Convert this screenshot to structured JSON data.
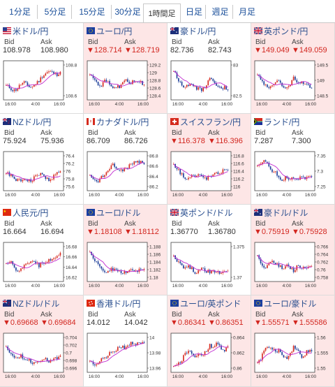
{
  "tabs": [
    {
      "label": "1分足",
      "active": false
    },
    {
      "label": "5分足",
      "active": false
    },
    {
      "label": "15分足",
      "active": false
    },
    {
      "label": "30分足",
      "active": false
    },
    {
      "label": "1時間足",
      "active": true
    },
    {
      "label": "日足",
      "active": false
    },
    {
      "label": "週足",
      "active": false
    },
    {
      "label": "月足",
      "active": false
    }
  ],
  "panels": [
    {
      "title": "米ドル/円",
      "flag": "us-flag-icon",
      "bid_label": "Bid",
      "ask_label": "Ask",
      "bid": "108.978",
      "ask": "108.980",
      "down": false,
      "bg": "white",
      "yticks": [
        "108.8",
        "108.6"
      ],
      "xticks": [
        "16:00",
        "4:00",
        "16:00"
      ]
    },
    {
      "title": "ユーロ/円",
      "flag": "eu-flag-icon",
      "bid_label": "Bid",
      "ask_label": "Ask",
      "bid": "▼128.714",
      "ask": "▼128.719",
      "down": true,
      "bg": "pink",
      "yticks": [
        "129.2",
        "129",
        "128.8",
        "128.6",
        "128.4"
      ],
      "xticks": [
        "16:00",
        "4:00",
        "16:00"
      ]
    },
    {
      "title": "豪ドル/円",
      "flag": "au-flag-icon",
      "bid_label": "Bid",
      "ask_label": "Ask",
      "bid": "82.736",
      "ask": "82.743",
      "down": false,
      "bg": "white",
      "yticks": [
        "83",
        "82.5"
      ],
      "xticks": [
        "16:00",
        "4:00",
        "16:00"
      ]
    },
    {
      "title": "英ポンド/円",
      "flag": "uk-flag-icon",
      "bid_label": "Bid",
      "ask_label": "Ask",
      "bid": "▼149.049",
      "ask": "▼149.059",
      "down": true,
      "bg": "pink",
      "yticks": [
        "149.5",
        "149",
        "148.5"
      ],
      "xticks": [
        "16:00",
        "4:00",
        "16:00"
      ]
    },
    {
      "title": "NZドル/円",
      "flag": "nz-flag-icon",
      "bid_label": "Bid",
      "ask_label": "Ask",
      "bid": "75.924",
      "ask": "75.936",
      "down": false,
      "bg": "white",
      "yticks": [
        "76.4",
        "76.2",
        "76",
        "75.8",
        "75.6"
      ],
      "xticks": [
        "16:00",
        "4:00",
        "16:00"
      ]
    },
    {
      "title": "カナダドル/円",
      "flag": "ca-flag-icon",
      "bid_label": "Bid",
      "ask_label": "Ask",
      "bid": "86.709",
      "ask": "86.726",
      "down": false,
      "bg": "white",
      "yticks": [
        "86.8",
        "86.6",
        "86.4",
        "86.2"
      ],
      "xticks": [
        "16:00",
        "4:00",
        "16:00"
      ]
    },
    {
      "title": "スイスフラン/円",
      "flag": "ch-flag-icon",
      "bid_label": "Bid",
      "ask_label": "Ask",
      "bid": "▼116.378",
      "ask": "▼116.396",
      "down": true,
      "bg": "pink",
      "yticks": [
        "116.8",
        "116.6",
        "116.4",
        "116.2",
        "116"
      ],
      "xticks": [
        "16:00",
        "4:00",
        "16:00"
      ]
    },
    {
      "title": "ランド/円",
      "flag": "za-flag-icon",
      "bid_label": "Bid",
      "ask_label": "Ask",
      "bid": "7.287",
      "ask": "7.300",
      "down": false,
      "bg": "white",
      "yticks": [
        "7.35",
        "7.3",
        "7.25"
      ],
      "xticks": [
        "16:00",
        "4:00",
        "16:00"
      ]
    },
    {
      "title": "人民元/円",
      "flag": "cn-flag-icon",
      "bid_label": "Bid",
      "ask_label": "Ask",
      "bid": "16.664",
      "ask": "16.694",
      "down": false,
      "bg": "white",
      "yticks": [
        "16.68",
        "16.66",
        "16.64",
        "16.62"
      ],
      "xticks": [
        "16:00",
        "4:00",
        "16:00"
      ]
    },
    {
      "title": "ユーロ/ドル",
      "flag": "eu-flag-icon",
      "bid_label": "Bid",
      "ask_label": "Ask",
      "bid": "▼1.18108",
      "ask": "▼1.18112",
      "down": true,
      "bg": "pink",
      "yticks": [
        "1.188",
        "1.186",
        "1.184",
        "1.182",
        "1.18"
      ],
      "xticks": [
        "16:00",
        "4:00",
        "16:00"
      ]
    },
    {
      "title": "英ポンド/ドル",
      "flag": "uk-flag-icon",
      "bid_label": "Bid",
      "ask_label": "Ask",
      "bid": "1.36770",
      "ask": "1.36780",
      "down": false,
      "bg": "white",
      "yticks": [
        "1.375",
        "1.37"
      ],
      "xticks": [
        "16:00",
        "4:00",
        "16:00"
      ]
    },
    {
      "title": "豪ドル/ドル",
      "flag": "au-flag-icon",
      "bid_label": "Bid",
      "ask_label": "Ask",
      "bid": "▼0.75919",
      "ask": "▼0.75928",
      "down": true,
      "bg": "pink",
      "yticks": [
        "0.766",
        "0.764",
        "0.762",
        "0.76",
        "0.758"
      ],
      "xticks": [
        "16:00",
        "4:00",
        "16:00"
      ]
    },
    {
      "title": "NZドル/ドル",
      "flag": "nz-flag-icon",
      "bid_label": "Bid",
      "ask_label": "Ask",
      "bid": "▼0.69668",
      "ask": "▼0.69684",
      "down": true,
      "bg": "pink",
      "yticks": [
        "0.704",
        "0.702",
        "0.7",
        "0.698",
        "0.696"
      ],
      "xticks": [
        "16:00",
        "4:00",
        "16:00"
      ]
    },
    {
      "title": "香港ドル/円",
      "flag": "hk-flag-icon",
      "bid_label": "Bid",
      "ask_label": "Ask",
      "bid": "14.012",
      "ask": "14.042",
      "down": false,
      "bg": "white",
      "yticks": [
        "14",
        "13.98",
        "13.96"
      ],
      "xticks": [
        "16:00",
        "4:00",
        "16:00"
      ]
    },
    {
      "title": "ユーロ/英ポンド",
      "flag": "eu-flag-icon",
      "bid_label": "Bid",
      "ask_label": "Ask",
      "bid": "▼0.86341",
      "ask": "▼0.86351",
      "down": true,
      "bg": "pink",
      "yticks": [
        "0.864",
        "0.862",
        "0.86"
      ],
      "xticks": [
        "16:00",
        "4:00",
        "16:00"
      ]
    },
    {
      "title": "ユーロ/豪ドル",
      "flag": "eu-flag-icon",
      "bid_label": "Bid",
      "ask_label": "Ask",
      "bid": "▼1.55571",
      "ask": "▼1.55586",
      "down": true,
      "bg": "pink",
      "yticks": [
        "1.56",
        "1.555",
        "1.55"
      ],
      "xticks": [
        "16:00",
        "4:00",
        "16:00"
      ]
    }
  ],
  "colors": {
    "up_candle": "#d62a20",
    "down_candle": "#1f3f9a",
    "moving_average": "#c02ad0",
    "pink_bg": "#fde6e6",
    "down_text": "#d2261f"
  }
}
